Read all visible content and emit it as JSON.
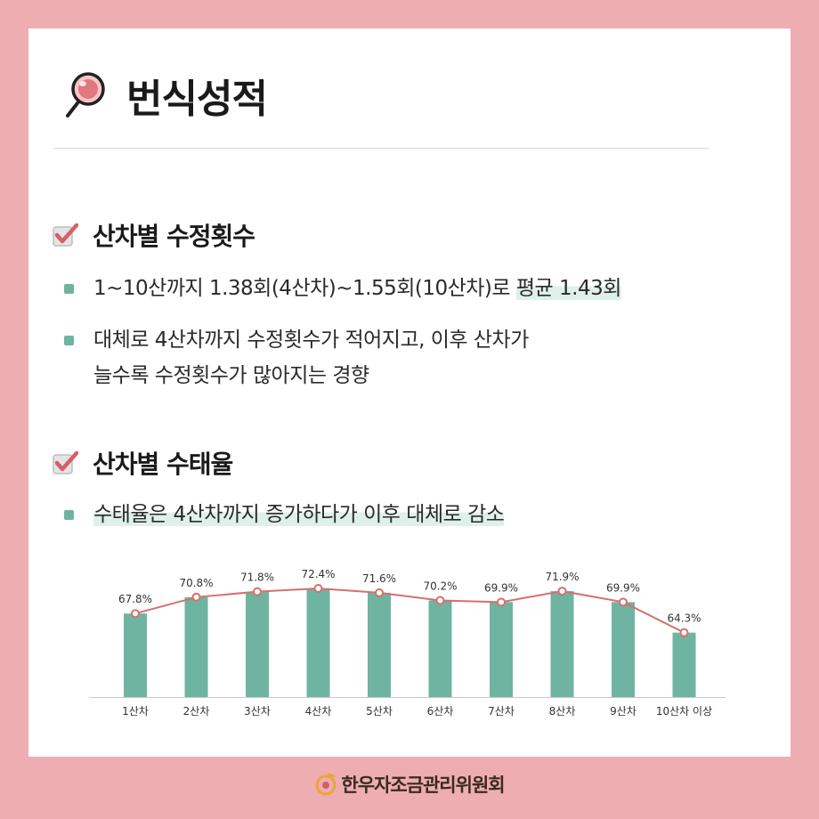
{
  "title": "번식성적",
  "sections": [
    {
      "heading": "산차별 수정횟수",
      "bullets": [
        {
          "plain": "1~10산까지 1.38회(4산차)~1.55회(10산차)로 ",
          "highlight": "평균 1.43회"
        },
        {
          "lines": [
            "대체로 4산차까지 수정횟수가 적어지고, 이후 산차가",
            "늘수록 수정횟수가 많아지는 경향"
          ]
        }
      ]
    },
    {
      "heading": "산차별 수태율",
      "bullets": [
        {
          "highlight": "수태율은 4산차까지 증가하다가 이후 대체로 감소"
        }
      ]
    }
  ],
  "chart_data": {
    "type": "bar",
    "categories": [
      "1산차",
      "2산차",
      "3산차",
      "4산차",
      "5산차",
      "6산차",
      "7산차",
      "8산차",
      "9산차",
      "10산차 이상"
    ],
    "values": [
      67.8,
      70.8,
      71.8,
      72.4,
      71.6,
      70.2,
      69.9,
      71.9,
      69.9,
      64.3
    ],
    "value_labels": [
      "67.8%",
      "70.8%",
      "71.8%",
      "72.4%",
      "71.6%",
      "70.2%",
      "69.9%",
      "71.9%",
      "69.9%",
      "64.3%"
    ],
    "overlay_line": true,
    "grid": false,
    "colors": {
      "bar": "#6fb4a0",
      "line": "#d4706f",
      "marker_fill": "#ffffff"
    }
  },
  "footer": {
    "org": "한우자조금관리위원회"
  },
  "colors": {
    "background": "#eeadb0",
    "card": "#ffffff",
    "accent": "#6fb4a0",
    "highlight": "#dff0ea",
    "check": "#d4606a"
  },
  "icons": {
    "title": "magnifier-icon",
    "section": "checkbox-checked-icon",
    "footer": "hanwoo-logo-icon"
  }
}
